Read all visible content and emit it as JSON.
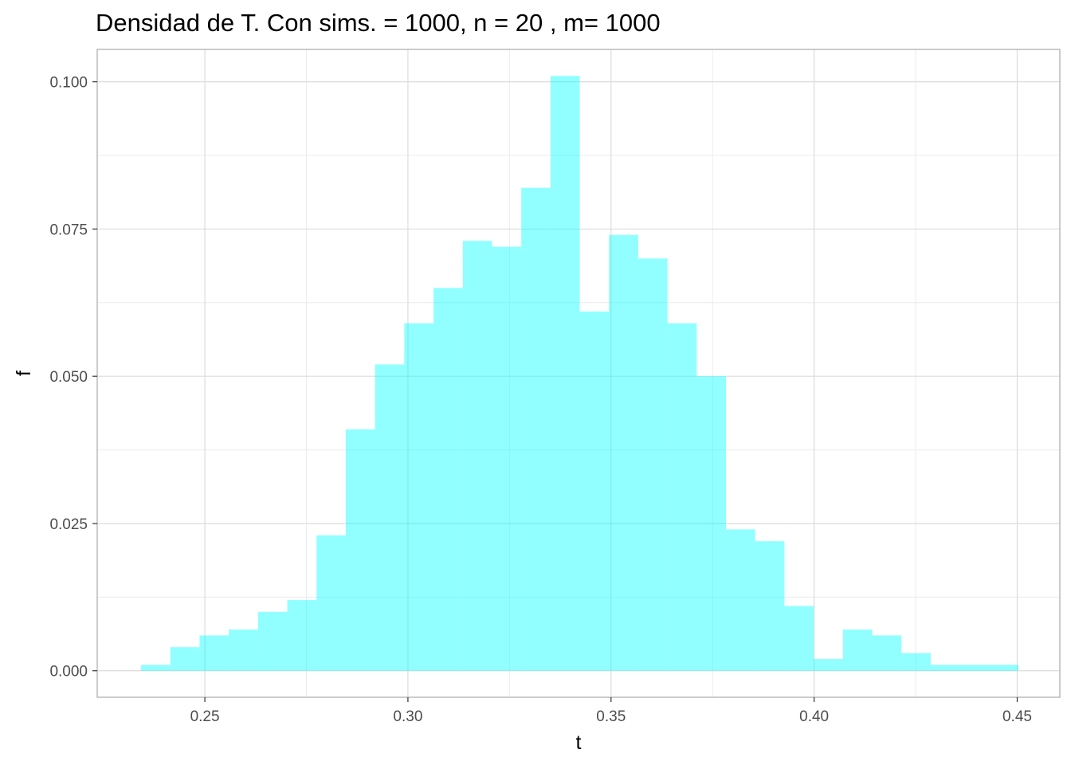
{
  "chart_data": {
    "type": "bar",
    "title": "Densidad de T. Con  sims. = 1000, n = 20 , m= 1000",
    "xlabel": "t",
    "ylabel": "f",
    "xlim": [
      0.2235,
      0.4605
    ],
    "ylim": [
      -0.0045,
      0.1055
    ],
    "x_ticks": [
      "0.25",
      "0.30",
      "0.35",
      "0.40",
      "0.45"
    ],
    "y_ticks": [
      "0.000",
      "0.025",
      "0.050",
      "0.075",
      "0.100"
    ],
    "bin_start": 0.2343,
    "bin_width": 0.0072,
    "values": [
      0.001,
      0.004,
      0.006,
      0.007,
      0.01,
      0.012,
      0.023,
      0.041,
      0.052,
      0.059,
      0.065,
      0.073,
      0.072,
      0.082,
      0.101,
      0.061,
      0.074,
      0.07,
      0.059,
      0.05,
      0.024,
      0.022,
      0.011,
      0.002,
      0.007,
      0.006,
      0.003,
      0.001,
      0.001,
      0.001
    ],
    "bar_color": "#00FFFF",
    "bar_opacity": 0.43,
    "grid": true,
    "legend": "none"
  }
}
